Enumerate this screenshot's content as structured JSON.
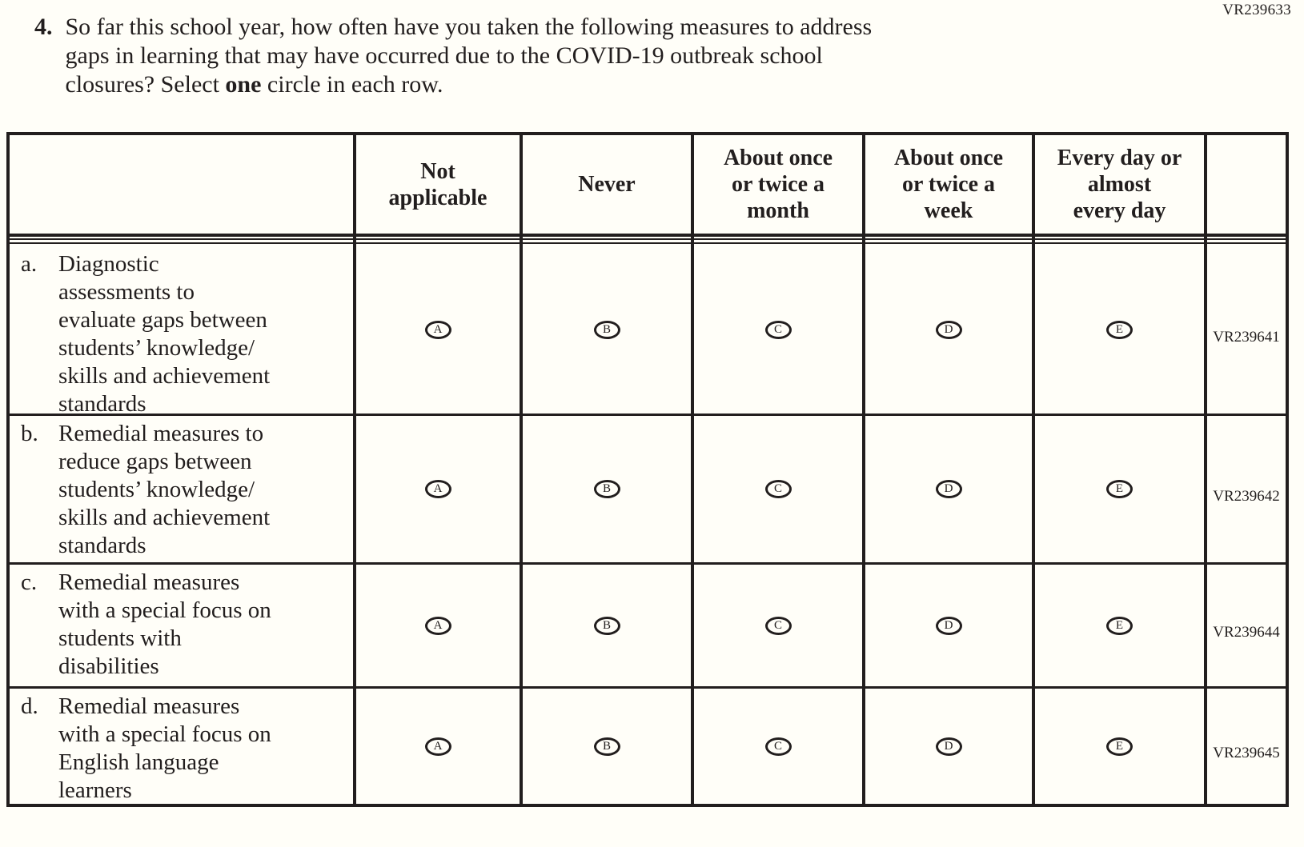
{
  "form_code_top": "VR239633",
  "question": {
    "number": "4.",
    "line1": "So far this school year, how often have you taken the following measures to address",
    "line2": "gaps in learning that may have occurred due to the COVID-19 outbreak school",
    "line3_pre": "closures? Select ",
    "line3_bold": "one",
    "line3_post": " circle in each row."
  },
  "table": {
    "column_headers": [
      "Not\napplicable",
      "Never",
      "About once\nor twice a\nmonth",
      "About once\nor twice a\nweek",
      "Every day or\nalmost\nevery day"
    ],
    "options": [
      "A",
      "B",
      "C",
      "D",
      "E"
    ],
    "rows": [
      {
        "letter": "a.",
        "label": "Diagnostic\nassessments to\nevaluate gaps between\nstudents’ knowledge/\nskills and achievement\nstandards",
        "code": "VR239641"
      },
      {
        "letter": "b.",
        "label": "Remedial measures to\nreduce gaps between\nstudents’ knowledge/\nskills and achievement\nstandards",
        "code": "VR239642"
      },
      {
        "letter": "c.",
        "label": "Remedial measures\nwith a special focus on\nstudents with\ndisabilities",
        "code": "VR239644"
      },
      {
        "letter": "d.",
        "label": "Remedial measures\nwith a special focus on\nEnglish language\nlearners",
        "code": "VR239645"
      }
    ]
  }
}
